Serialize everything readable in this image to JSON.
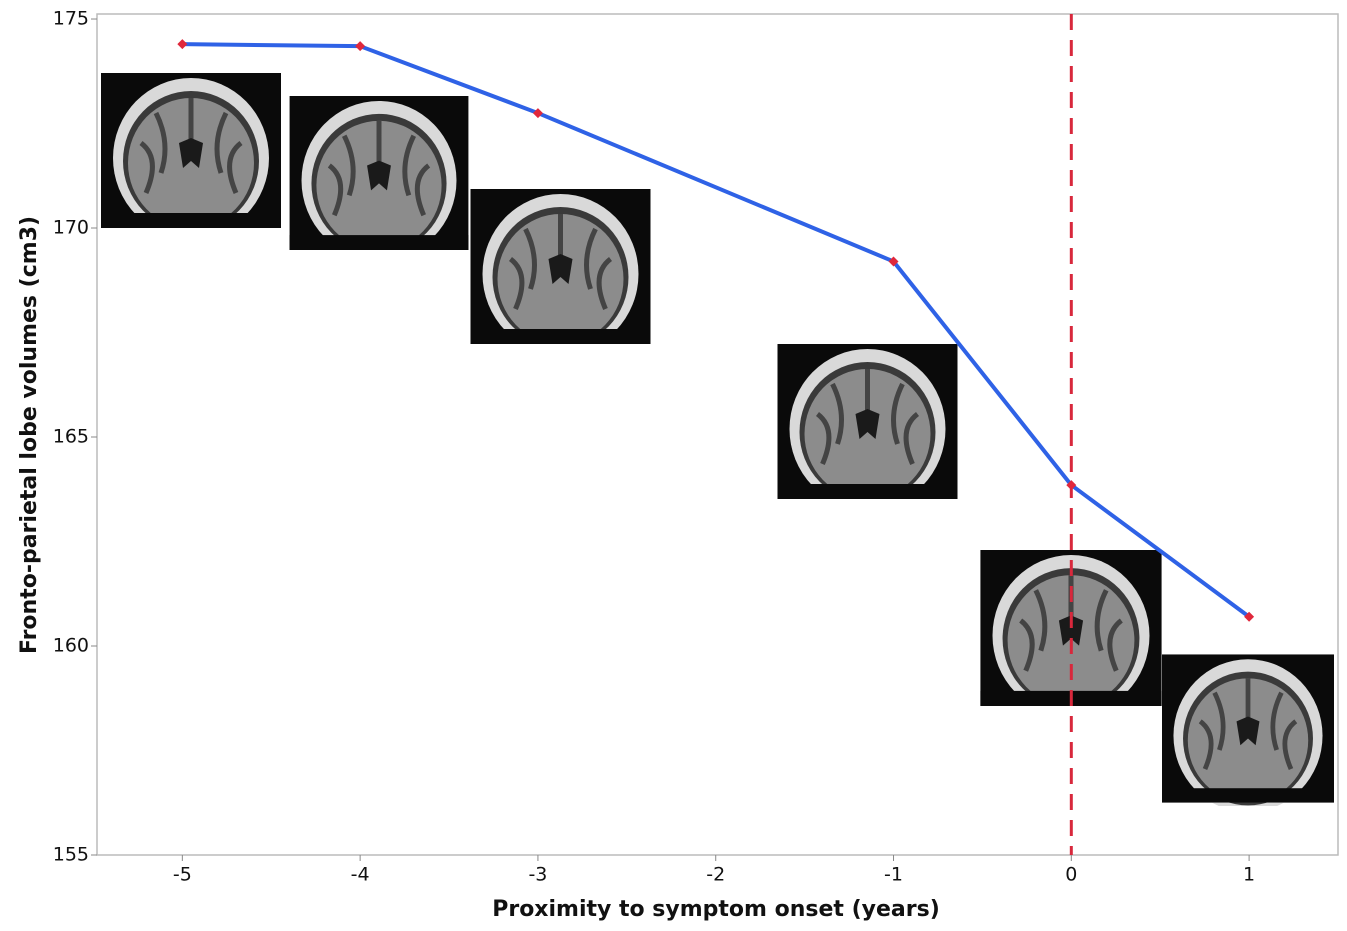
{
  "chart_data": {
    "type": "line",
    "x_label": "Proximity to symptom onset (years)",
    "y_label": "Fronto-parietal lobe volumes (cm3)",
    "x": [
      -5,
      -4,
      -3,
      -1,
      0,
      1
    ],
    "series": [
      {
        "color": "#2f62e6",
        "marker_color": "#e0283c",
        "values": [
          174.4,
          174.35,
          172.75,
          169.2,
          163.85,
          160.7
        ]
      }
    ],
    "xlim": [
      -5.48,
      1.5
    ],
    "xticks": [
      -5,
      -4,
      -3,
      -2,
      -1,
      0,
      1
    ],
    "ylim": [
      155,
      175.12
    ],
    "yticks": [
      155,
      160,
      165,
      170,
      175
    ],
    "reference_x": 0,
    "reference_color": "#d8283c"
  }
}
